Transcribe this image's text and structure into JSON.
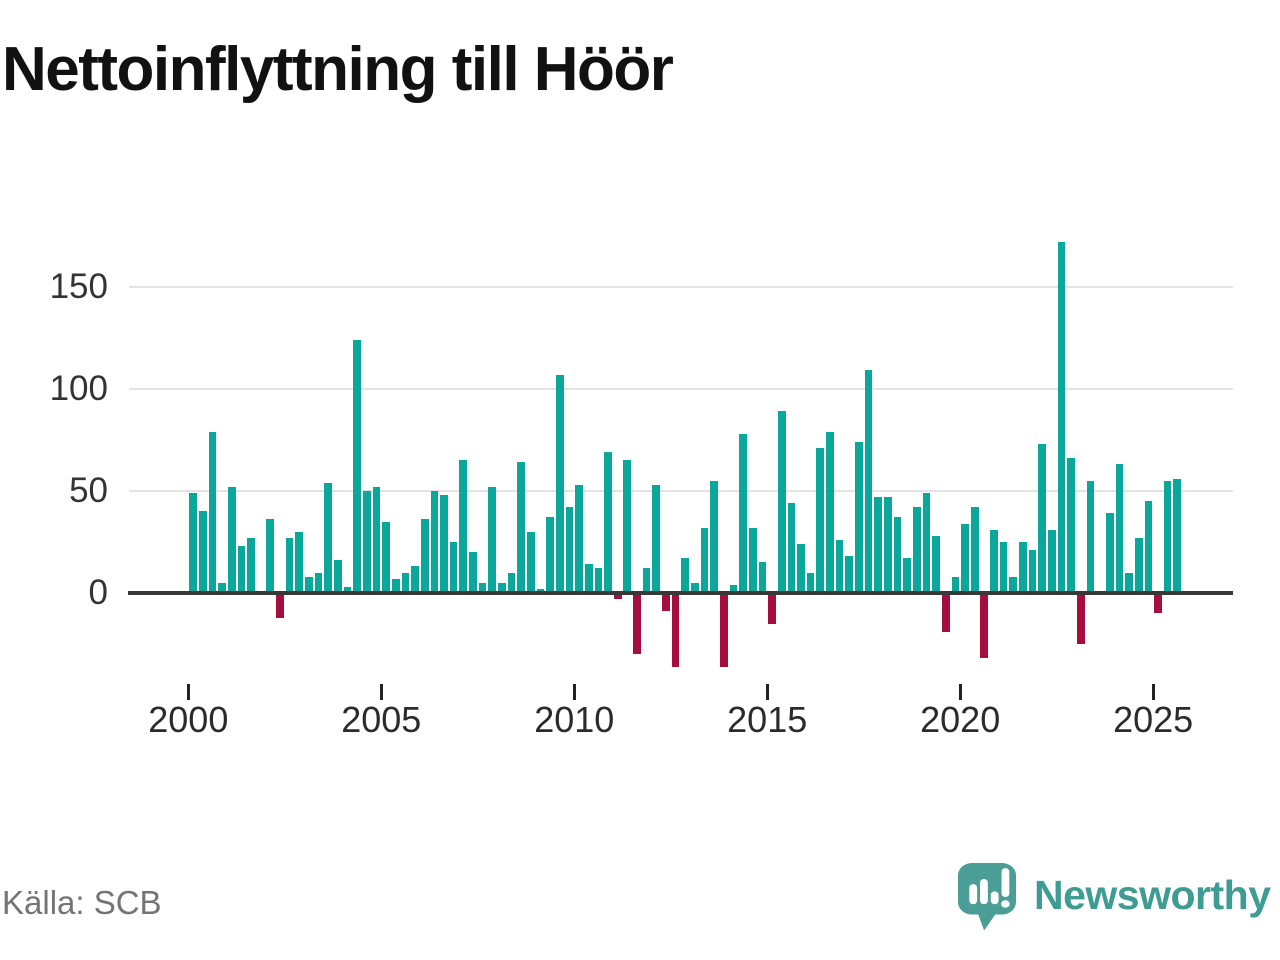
{
  "header": {
    "title": "Nettoinflyttning till Höör"
  },
  "footer": {
    "source": "Källa: SCB",
    "brand": "Newsworthy",
    "brand_icon": "speech-bubble-bar-chart-icon"
  },
  "colors": {
    "positive": "#0ba79b",
    "negative": "#a50e3e",
    "brand_icon": "#4a9e96",
    "brand_text": "#3e9c93",
    "grid": "#e3e3e3",
    "axis": "#383838",
    "tick": "#222222",
    "axis_label": "#333333",
    "x_label": "#2b2b2b",
    "title": "#111111",
    "source_text": "#747474"
  },
  "chart_data": {
    "type": "bar",
    "title": "Nettoinflyttning till Höör",
    "period": "quarterly",
    "start_year": 2000,
    "start_quarter": 1,
    "end_label": "2025-Q3",
    "xlabel": "",
    "ylabel": "",
    "y_ticks": [
      0,
      50,
      100,
      150
    ],
    "x_tick_labels": [
      "2000",
      "2005",
      "2010",
      "2015",
      "2020",
      "2025"
    ],
    "ylim": [
      -45,
      185
    ],
    "grid": "horizontal",
    "legend": "none",
    "values": [
      49,
      40,
      79,
      5,
      52,
      23,
      27,
      0,
      36,
      -12,
      27,
      30,
      8,
      10,
      54,
      16,
      3,
      124,
      50,
      52,
      35,
      7,
      10,
      13,
      36,
      50,
      48,
      25,
      65,
      20,
      5,
      52,
      5,
      10,
      64,
      30,
      2,
      37,
      107,
      42,
      53,
      14,
      12,
      69,
      -3,
      65,
      -30,
      12,
      53,
      -9,
      -36,
      17,
      5,
      32,
      55,
      -36,
      4,
      78,
      32,
      15,
      -15,
      89,
      44,
      24,
      10,
      71,
      79,
      26,
      18,
      74,
      109,
      47,
      47,
      37,
      17,
      42,
      49,
      28,
      -19,
      8,
      34,
      42,
      -32,
      31,
      25,
      8,
      25,
      21,
      73,
      31,
      172,
      66,
      -25,
      55,
      0,
      39,
      63,
      10,
      27,
      45,
      -10,
      55,
      56
    ]
  }
}
